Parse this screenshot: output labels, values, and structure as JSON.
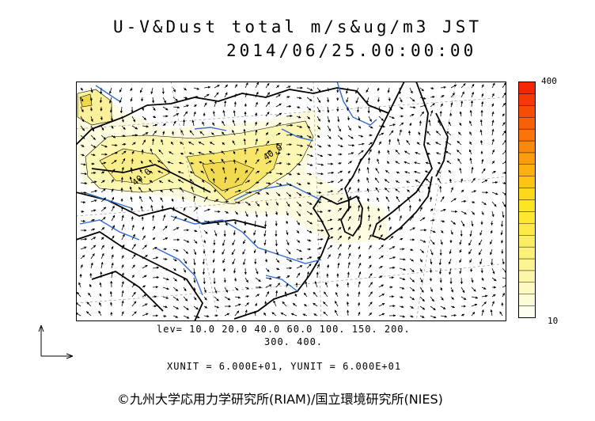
{
  "title": {
    "line1": "U-V&Dust total m/s&ug/m3 JST",
    "line2": "2014/06/25.00:00:00"
  },
  "colorbar": {
    "max_label": "400",
    "min_label": "10",
    "colors": [
      "#fdfdf0",
      "#fdfcd8",
      "#fdf9c0",
      "#fdf6a8",
      "#fdf390",
      "#fdf078",
      "#fded60",
      "#fdea48",
      "#fde730",
      "#fde420",
      "#fdd818",
      "#fdc414",
      "#fcb010",
      "#fb9c0e",
      "#fa880c",
      "#f9740a",
      "#f86008",
      "#f74c06",
      "#f63804",
      "#f52402"
    ]
  },
  "contour_levels_line1": "lev= 10.0 20.0 40.0 60.0 100. 150. 200.",
  "contour_levels_line2": "300. 400.",
  "units_line": "XUNIT = 6.000E+01, YUNIT = 6.000E+01",
  "copyright": "©九州大学応用力学研究所(RIAM)/国立環境研究所(NIES)",
  "map_labels": [
    "40.0",
    "40.0"
  ]
}
